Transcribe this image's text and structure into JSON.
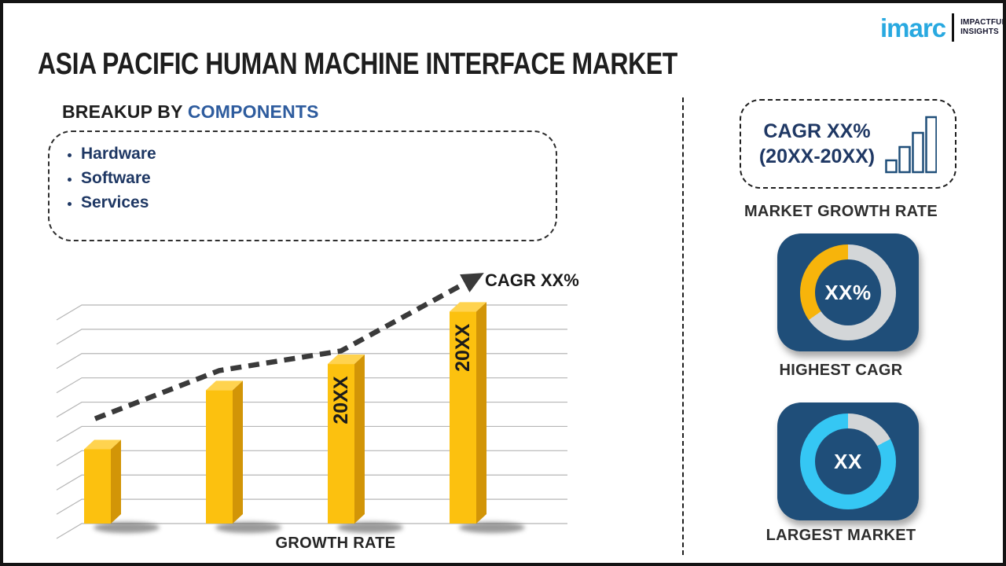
{
  "header": {
    "title": "ASIA PACIFIC HUMAN MACHINE INTERFACE MARKET",
    "logo": {
      "brand": "imarc",
      "brand_color": "#29A9E0",
      "tagline_line1": "IMPACTFUL",
      "tagline_line2": "INSIGHTS"
    }
  },
  "breakup": {
    "heading_prefix": "BREAKUP BY ",
    "heading_highlight": "COMPONENTS",
    "heading_prefix_color": "#1e1e1e",
    "heading_highlight_color": "#2E5C9E",
    "items": [
      "Hardware",
      "Software",
      "Services"
    ]
  },
  "chart_data": {
    "type": "bar",
    "title": "",
    "xlabel": "GROWTH RATE",
    "ylabel": "",
    "categories": [
      "",
      "",
      "20XX",
      "20XX"
    ],
    "values": [
      34,
      61,
      73,
      97
    ],
    "values_note": "relative bar heights, percent of plot height; axis unlabeled placeholder chart",
    "gridlines": 10,
    "grid_color": "#b5b5b5",
    "bar_color": "#FCC10F",
    "bar_side_color": "#D29507",
    "bar_top_color": "#FFD34F",
    "trend": {
      "label": "CAGR XX%",
      "points_pct": [
        48,
        70,
        79,
        113
      ],
      "style": "dashed-arrow",
      "color": "#3a3a3a"
    },
    "legend": null
  },
  "sidebar": {
    "growth_box": {
      "line1": "CAGR XX%",
      "line2": "(20XX-20XX)",
      "text_color": "#1F3864",
      "icon_color": "#1F4E79"
    },
    "growth_label": "MARKET GROWTH RATE",
    "highest_cagr": {
      "value": "XX%",
      "label": "HIGHEST CAGR",
      "card_color": "#1F4E79",
      "segments": [
        {
          "color": "#D3D6D8",
          "from": 0,
          "to": 235
        },
        {
          "color": "#F7B40B",
          "from": 235,
          "to": 360
        }
      ]
    },
    "largest_market": {
      "value": "XX",
      "label": "LARGEST MARKET",
      "card_color": "#1F4E79",
      "segments": [
        {
          "color": "#D2D5D7",
          "from": 0,
          "to": 62
        },
        {
          "color": "#35C7F4",
          "from": 62,
          "to": 360
        }
      ]
    }
  }
}
